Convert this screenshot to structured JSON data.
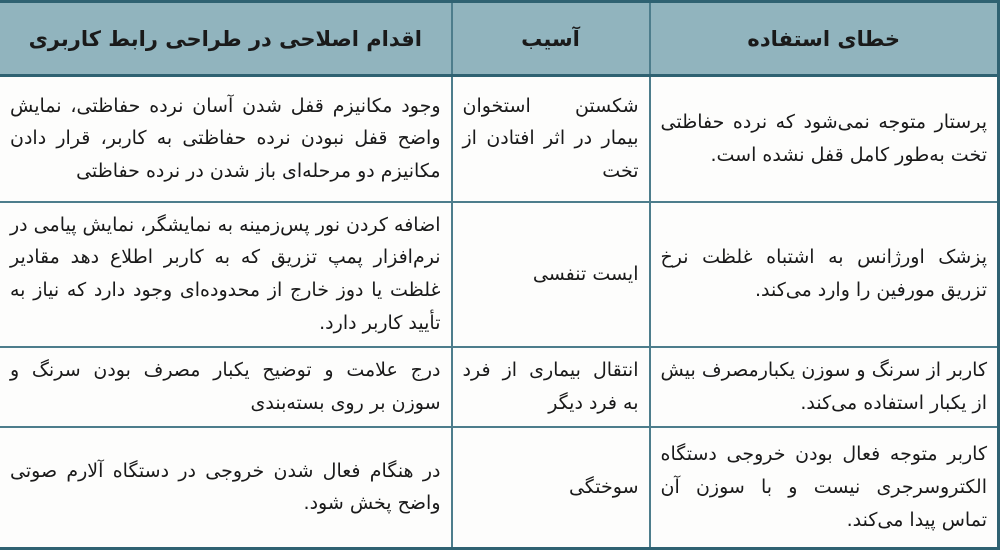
{
  "theme": {
    "header_bg": "#91b4be",
    "border": "#4d7d8c",
    "border_outer": "#2f6272",
    "body_bg": "#fdfdfc",
    "text": "#1a1a1a"
  },
  "table": {
    "columns": [
      {
        "key": "error",
        "label": "خطای استفاده"
      },
      {
        "key": "harm",
        "label": "آسیب"
      },
      {
        "key": "action",
        "label": "اقدام اصلاحی در طراحی رابط کاربری"
      }
    ],
    "rows": [
      {
        "error": "پرستار متوجه نمی‌شود که نرده حفاظتی تخت به‌طور کامل قفل نشده است.",
        "harm": "شکستن استخوان بیمار در اثر افتادن از تخت",
        "action": "وجود مکانیزم قفل شدن آسان نرده حفاظتی، نمایش واضح قفل نبودن نرده حفاظتی به کاربر، قرار دادن مکانیزم دو مرحله‌ای باز شدن در نرده حفاظتی"
      },
      {
        "error": "پزشک اورژانس به اشتباه غلظت نرخ تزریق مورفین را وارد می‌کند.",
        "harm": "ایست تنفسی",
        "action": "اضافه کردن نور پس‌زمینه به نمایشگر، نمایش پیامی در نرم‌افزار پمپ تزریق که به کاربر اطلاع دهد مقادیر غلظت یا دوز خارج از محدوده‌ای وجود دارد که نیاز به تأیید کاربر دارد."
      },
      {
        "error": "کاربر از سرنگ و سوزن یکبارمصرف بیش از یکبار استفاده می‌کند.",
        "harm": "انتقال بیماری از فرد به فرد دیگر",
        "action": "درج علامت و توضیح یکبار مصرف بودن سرنگ و سوزن بر روی بسته‌بندی"
      },
      {
        "error": "کاربر متوجه فعال بودن خروجی دستگاه الکتروسرجری نیست و با سوزن آن تماس پیدا می‌کند.",
        "harm": "سوختگی",
        "action": "در هنگام فعال شدن خروجی در دستگاه آلارم صوتی واضح پخش شود."
      }
    ]
  }
}
